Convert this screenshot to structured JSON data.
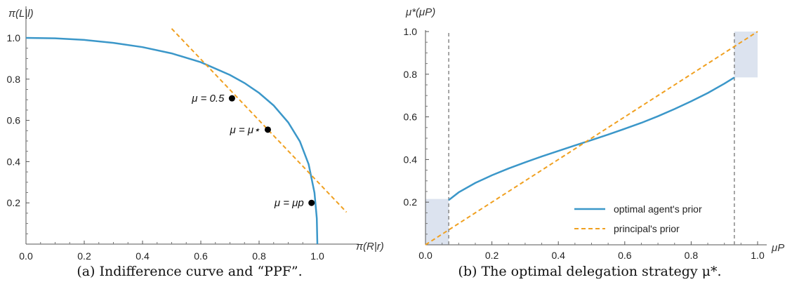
{
  "chart_data": [
    {
      "type": "line",
      "title": "",
      "xlabel": "π(R|r)",
      "ylabel": "π(L|l)",
      "xlim": [
        0,
        1.1
      ],
      "ylim": [
        0,
        1.05
      ],
      "x_ticks": [
        "0.0",
        "0.2",
        "0.4",
        "0.6",
        "0.8",
        "1.0"
      ],
      "y_ticks": [
        "0.2",
        "0.4",
        "0.6",
        "0.8",
        "1.0"
      ],
      "series": [
        {
          "kind": "curve",
          "color": "#3b97c9",
          "points": [
            [
              0.0,
              1.0
            ],
            [
              0.1,
              0.998
            ],
            [
              0.2,
              0.99
            ],
            [
              0.3,
              0.976
            ],
            [
              0.4,
              0.955
            ],
            [
              0.5,
              0.925
            ],
            [
              0.6,
              0.882
            ],
            [
              0.7,
              0.82
            ],
            [
              0.75,
              0.781
            ],
            [
              0.8,
              0.733
            ],
            [
              0.85,
              0.672
            ],
            [
              0.9,
              0.59
            ],
            [
              0.94,
              0.498
            ],
            [
              0.97,
              0.387
            ],
            [
              0.99,
              0.249
            ],
            [
              0.998,
              0.125
            ],
            [
              1.0,
              0.0
            ]
          ]
        },
        {
          "kind": "tangent",
          "color": "#f0a020",
          "dashed": true,
          "points": [
            [
              0.5,
              1.045
            ],
            [
              1.1,
              0.155
            ]
          ]
        }
      ],
      "markers": [
        {
          "x": 0.707,
          "y": 0.707,
          "label": "μ = 0.5"
        },
        {
          "x": 0.83,
          "y": 0.555,
          "label": "μ = μ⋆"
        },
        {
          "x": 0.98,
          "y": 0.2,
          "label": "μ = μp"
        }
      ],
      "caption": "(a) Indifference curve and “PPF”."
    },
    {
      "type": "line",
      "title": "",
      "xlabel": "μP",
      "ylabel": "μ*(μP)",
      "xlim": [
        0,
        1.0
      ],
      "ylim": [
        0,
        1.0
      ],
      "x_ticks": [
        "0.0",
        "0.2",
        "0.4",
        "0.6",
        "0.8",
        "1.0"
      ],
      "y_ticks": [
        "0.2",
        "0.4",
        "0.6",
        "0.8",
        "1.0"
      ],
      "vlines": [
        0.07,
        0.93
      ],
      "shaded": [
        {
          "x": [
            0.0,
            0.07
          ],
          "y": [
            0.0,
            0.215
          ]
        },
        {
          "x": [
            0.93,
            1.0
          ],
          "y": [
            0.785,
            1.0
          ]
        }
      ],
      "series": [
        {
          "name": "optimal agent's prior",
          "color": "#3b97c9",
          "points": [
            [
              0.07,
              0.21
            ],
            [
              0.1,
              0.246
            ],
            [
              0.15,
              0.29
            ],
            [
              0.2,
              0.326
            ],
            [
              0.25,
              0.358
            ],
            [
              0.3,
              0.387
            ],
            [
              0.35,
              0.414
            ],
            [
              0.4,
              0.44
            ],
            [
              0.45,
              0.466
            ],
            [
              0.5,
              0.491
            ],
            [
              0.55,
              0.517
            ],
            [
              0.6,
              0.544
            ],
            [
              0.65,
              0.572
            ],
            [
              0.7,
              0.603
            ],
            [
              0.75,
              0.637
            ],
            [
              0.8,
              0.673
            ],
            [
              0.85,
              0.712
            ],
            [
              0.9,
              0.756
            ],
            [
              0.93,
              0.785
            ]
          ]
        },
        {
          "name": "principal's prior",
          "color": "#f0a020",
          "dashed": true,
          "points": [
            [
              0.0,
              0.0
            ],
            [
              1.0,
              1.0
            ]
          ]
        }
      ],
      "legend_position": "bottom-right",
      "caption": "(b) The optimal delegation strategy μ*."
    }
  ]
}
